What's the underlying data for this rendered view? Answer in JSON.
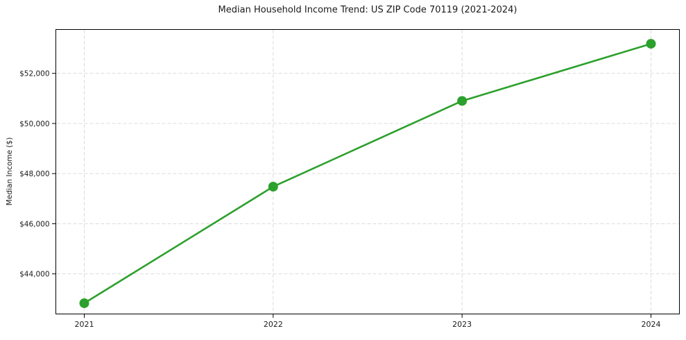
{
  "chart_data": {
    "type": "line",
    "title": "Median Household Income Trend: US ZIP Code 70119 (2021-2024)",
    "xlabel": "",
    "ylabel": "Median Income ($)",
    "categories": [
      "2021",
      "2022",
      "2023",
      "2024"
    ],
    "values": [
      42830,
      47480,
      50900,
      53180
    ],
    "yticks": [
      {
        "value": 44000,
        "label": "$44,000"
      },
      {
        "value": 46000,
        "label": "$46,000"
      },
      {
        "value": 48000,
        "label": "$48,000"
      },
      {
        "value": 50000,
        "label": "$50,000"
      },
      {
        "value": 52000,
        "label": "$52,000"
      }
    ],
    "ylim": [
      42400,
      53750
    ],
    "grid": true,
    "grid_style": "dashed",
    "legend_position": "none",
    "marker": "circle",
    "colors": {
      "line": "#2ca02c",
      "marker": "#2ca02c",
      "grid": "#d6d6d6",
      "axis": "#000000",
      "text": "#1a1a1a",
      "background": "#ffffff"
    }
  }
}
